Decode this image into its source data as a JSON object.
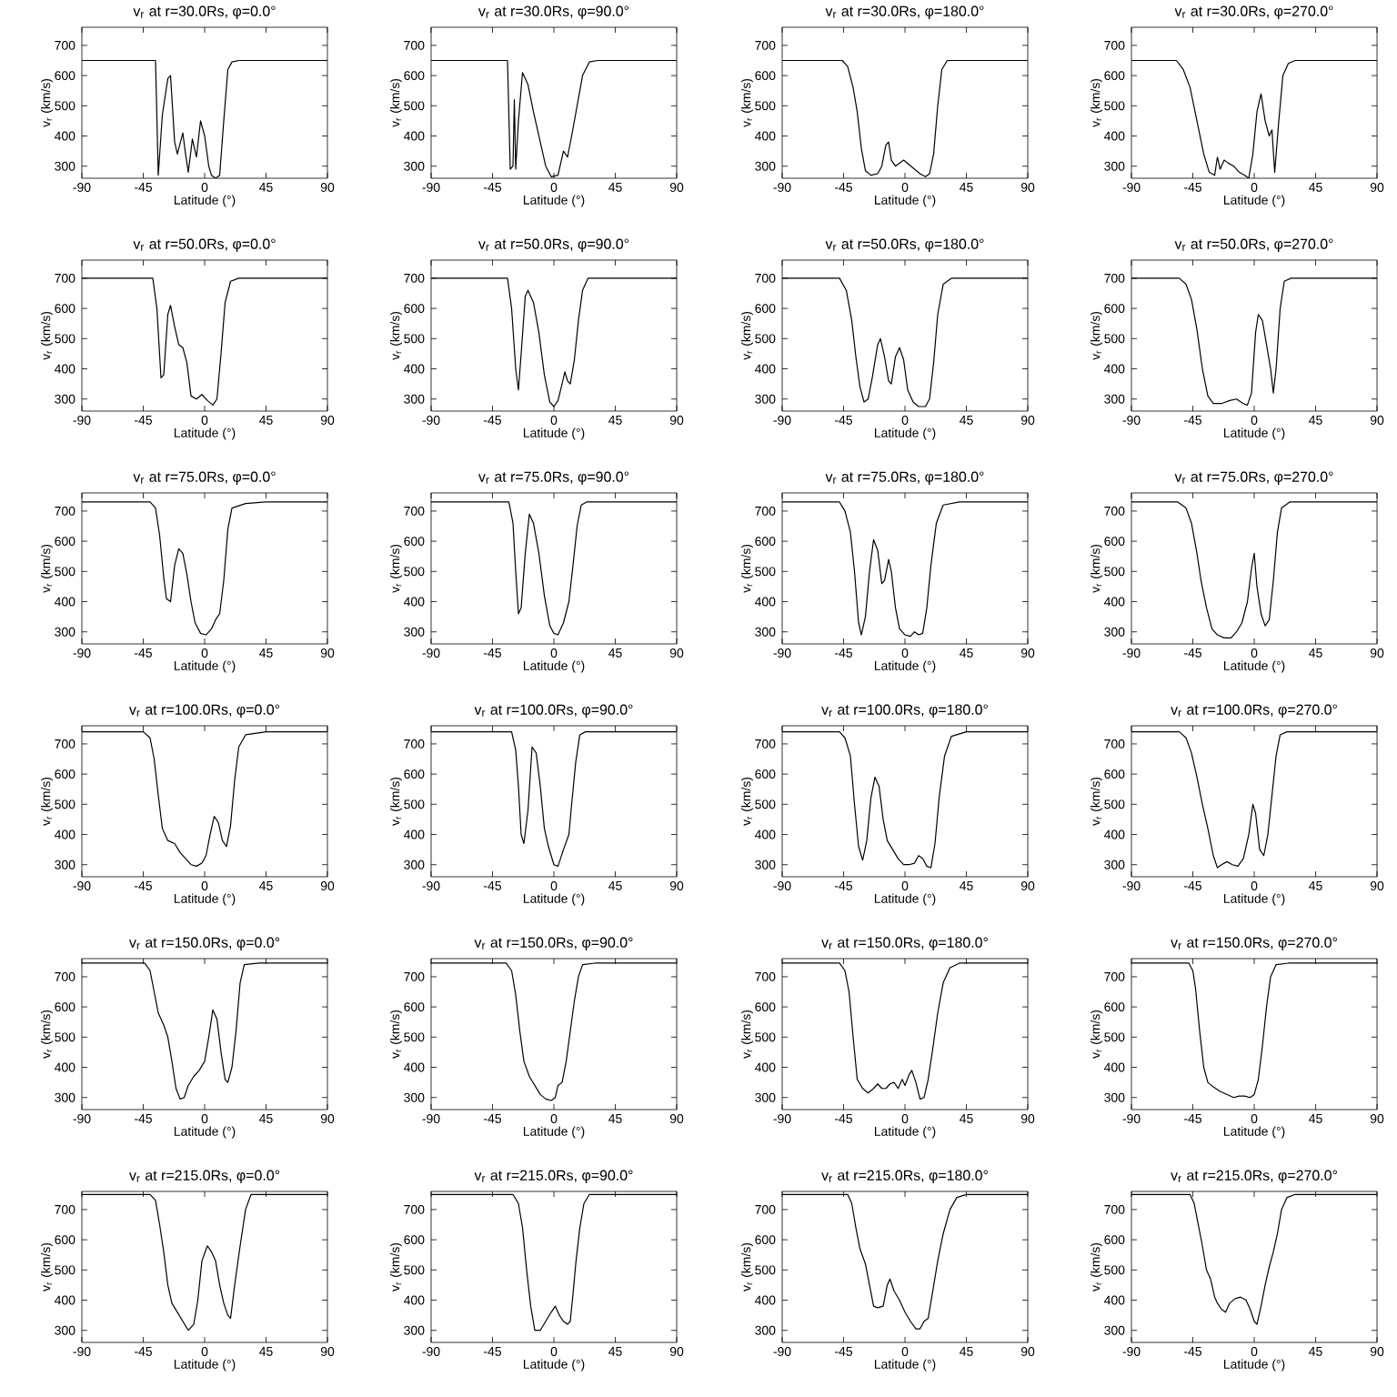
{
  "chart_data": [
    {
      "type": "line",
      "title": "v$_{r}$ at r=30.0Rs, φ=0.0°",
      "xlabel": "Latitude (°)",
      "ylabel": "v$_{r}$ (km/s)",
      "color": "#000000",
      "xlim": [
        -90,
        90
      ],
      "ylim": [
        260,
        760
      ],
      "xticks": [
        -90,
        -45,
        0,
        45,
        90
      ],
      "yticks": [
        300,
        400,
        500,
        600,
        700
      ],
      "x": [
        -90,
        -36,
        -34,
        -31,
        -27,
        -25,
        -22,
        -20,
        -16,
        -14,
        -12,
        -9,
        -6,
        -3,
        0,
        3,
        5,
        8,
        11,
        14,
        17,
        20,
        25,
        90
      ],
      "values": [
        650,
        650,
        270,
        470,
        590,
        600,
        380,
        340,
        410,
        340,
        280,
        390,
        330,
        450,
        400,
        300,
        270,
        260,
        270,
        450,
        620,
        645,
        650,
        650
      ]
    },
    {
      "type": "line",
      "title": "v$_{r}$ at r=30.0Rs, φ=90.0°",
      "xlabel": "Latitude (°)",
      "ylabel": "v$_{r}$ (km/s)",
      "color": "#000000",
      "xlim": [
        -90,
        90
      ],
      "ylim": [
        260,
        760
      ],
      "xticks": [
        -90,
        -45,
        0,
        45,
        90
      ],
      "yticks": [
        300,
        400,
        500,
        600,
        700
      ],
      "x": [
        -90,
        -34,
        -32,
        -30,
        -29,
        -28,
        -26,
        -23,
        -19,
        -15,
        -10,
        -6,
        -2,
        3,
        7,
        10,
        13,
        17,
        21,
        26,
        32,
        90
      ],
      "values": [
        650,
        650,
        290,
        300,
        520,
        290,
        450,
        610,
        570,
        480,
        380,
        300,
        265,
        270,
        350,
        330,
        400,
        500,
        600,
        645,
        650,
        650
      ]
    },
    {
      "type": "line",
      "title": "v$_{r}$ at r=30.0Rs, φ=180.0°",
      "xlabel": "Latitude (°)",
      "ylabel": "v$_{r}$ (km/s)",
      "color": "#000000",
      "xlim": [
        -90,
        90
      ],
      "ylim": [
        260,
        760
      ],
      "xticks": [
        -90,
        -45,
        0,
        45,
        90
      ],
      "yticks": [
        300,
        400,
        500,
        600,
        700
      ],
      "x": [
        -90,
        -46,
        -42,
        -38,
        -35,
        -32,
        -29,
        -25,
        -20,
        -17,
        -14,
        -12,
        -10,
        -7,
        -4,
        -1,
        3,
        7,
        11,
        15,
        18,
        21,
        24,
        27,
        31,
        90
      ],
      "values": [
        650,
        650,
        630,
        560,
        480,
        360,
        285,
        270,
        275,
        300,
        370,
        380,
        320,
        300,
        310,
        320,
        305,
        290,
        275,
        265,
        275,
        340,
        500,
        620,
        650,
        650
      ]
    },
    {
      "type": "line",
      "title": "v$_{r}$ at r=30.0Rs, φ=270.0°",
      "xlabel": "Latitude (°)",
      "ylabel": "v$_{r}$ (km/s)",
      "color": "#000000",
      "xlim": [
        -90,
        90
      ],
      "ylim": [
        260,
        760
      ],
      "xticks": [
        -90,
        -45,
        0,
        45,
        90
      ],
      "yticks": [
        300,
        400,
        500,
        600,
        700
      ],
      "x": [
        -90,
        -57,
        -52,
        -47,
        -42,
        -37,
        -33,
        -29,
        -27,
        -25,
        -22,
        -19,
        -15,
        -11,
        -7,
        -4,
        -1,
        2,
        5,
        8,
        11,
        13,
        15,
        18,
        21,
        25,
        30,
        90
      ],
      "values": [
        650,
        650,
        620,
        560,
        450,
        340,
        280,
        270,
        330,
        290,
        320,
        310,
        300,
        280,
        270,
        260,
        340,
        480,
        540,
        450,
        400,
        420,
        280,
        450,
        600,
        640,
        650,
        650
      ]
    },
    {
      "type": "line",
      "title": "v$_{r}$ at r=50.0Rs, φ=0.0°",
      "xlabel": "Latitude (°)",
      "ylabel": "v$_{r}$ (km/s)",
      "color": "#000000",
      "xlim": [
        -90,
        90
      ],
      "ylim": [
        260,
        760
      ],
      "xticks": [
        -90,
        -45,
        0,
        45,
        90
      ],
      "yticks": [
        300,
        400,
        500,
        600,
        700
      ],
      "x": [
        -90,
        -38,
        -35,
        -32,
        -30,
        -27,
        -25,
        -22,
        -19,
        -16,
        -13,
        -10,
        -6,
        -2,
        2,
        6,
        9,
        12,
        15,
        19,
        25,
        90
      ],
      "values": [
        700,
        700,
        600,
        370,
        380,
        580,
        610,
        540,
        480,
        470,
        420,
        310,
        300,
        315,
        295,
        280,
        300,
        450,
        620,
        690,
        700,
        700
      ]
    },
    {
      "type": "line",
      "title": "v$_{r}$ at r=50.0Rs, φ=90.0°",
      "xlabel": "Latitude (°)",
      "ylabel": "v$_{r}$ (km/s)",
      "color": "#000000",
      "xlim": [
        -90,
        90
      ],
      "ylim": [
        260,
        760
      ],
      "xticks": [
        -90,
        -45,
        0,
        45,
        90
      ],
      "yticks": [
        300,
        400,
        500,
        600,
        700
      ],
      "x": [
        -90,
        -34,
        -31,
        -28,
        -26,
        -24,
        -21,
        -19,
        -15,
        -11,
        -7,
        -3,
        0,
        3,
        6,
        8,
        10,
        12,
        15,
        18,
        21,
        25,
        90
      ],
      "values": [
        700,
        700,
        600,
        400,
        330,
        450,
        640,
        660,
        620,
        520,
        380,
        290,
        275,
        295,
        350,
        390,
        360,
        350,
        430,
        560,
        660,
        700,
        700
      ]
    },
    {
      "type": "line",
      "title": "v$_{r}$ at r=50.0Rs, φ=180.0°",
      "xlabel": "Latitude (°)",
      "ylabel": "v$_{r}$ (km/s)",
      "color": "#000000",
      "xlim": [
        -90,
        90
      ],
      "ylim": [
        260,
        760
      ],
      "xticks": [
        -90,
        -45,
        0,
        45,
        90
      ],
      "yticks": [
        300,
        400,
        500,
        600,
        700
      ],
      "x": [
        -90,
        -48,
        -43,
        -39,
        -36,
        -33,
        -30,
        -27,
        -24,
        -20,
        -18,
        -15,
        -12,
        -10,
        -7,
        -4,
        -1,
        2,
        6,
        10,
        15,
        18,
        21,
        24,
        28,
        34,
        90
      ],
      "values": [
        700,
        700,
        660,
        560,
        440,
        340,
        290,
        300,
        370,
        480,
        500,
        440,
        360,
        350,
        440,
        470,
        430,
        330,
        290,
        275,
        275,
        300,
        420,
        580,
        680,
        700,
        700
      ]
    },
    {
      "type": "line",
      "title": "v$_{r}$ at r=50.0Rs, φ=270.0°",
      "xlabel": "Latitude (°)",
      "ylabel": "v$_{r}$ (km/s)",
      "color": "#000000",
      "xlim": [
        -90,
        90
      ],
      "ylim": [
        260,
        760
      ],
      "xticks": [
        -90,
        -45,
        0,
        45,
        90
      ],
      "yticks": [
        300,
        400,
        500,
        600,
        700
      ],
      "x": [
        -90,
        -55,
        -50,
        -46,
        -42,
        -38,
        -34,
        -30,
        -24,
        -18,
        -13,
        -8,
        -5,
        -2,
        1,
        3,
        6,
        9,
        12,
        14,
        16,
        19,
        22,
        27,
        90
      ],
      "values": [
        700,
        700,
        680,
        630,
        530,
        400,
        310,
        285,
        285,
        295,
        300,
        285,
        280,
        320,
        520,
        580,
        560,
        480,
        400,
        320,
        400,
        600,
        690,
        700,
        700
      ]
    },
    {
      "type": "line",
      "title": "v$_{r}$ at r=75.0Rs, φ=0.0°",
      "xlabel": "Latitude (°)",
      "ylabel": "v$_{r}$ (km/s)",
      "color": "#000000",
      "xlim": [
        -90,
        90
      ],
      "ylim": [
        260,
        760
      ],
      "xticks": [
        -90,
        -45,
        0,
        45,
        90
      ],
      "yticks": [
        300,
        400,
        500,
        600,
        700
      ],
      "x": [
        -90,
        -40,
        -36,
        -33,
        -30,
        -28,
        -25,
        -22,
        -19,
        -16,
        -13,
        -10,
        -7,
        -3,
        1,
        5,
        8,
        11,
        14,
        17,
        20,
        30,
        45,
        90
      ],
      "values": [
        730,
        730,
        710,
        620,
        480,
        410,
        400,
        520,
        575,
        560,
        490,
        400,
        330,
        295,
        290,
        310,
        340,
        360,
        470,
        640,
        710,
        725,
        730,
        730
      ]
    },
    {
      "type": "line",
      "title": "v$_{r}$ at r=75.0Rs, φ=90.0°",
      "xlabel": "Latitude (°)",
      "ylabel": "v$_{r}$ (km/s)",
      "color": "#000000",
      "xlim": [
        -90,
        90
      ],
      "ylim": [
        260,
        760
      ],
      "xticks": [
        -90,
        -45,
        0,
        45,
        90
      ],
      "yticks": [
        300,
        400,
        500,
        600,
        700
      ],
      "x": [
        -90,
        -33,
        -30,
        -28,
        -26,
        -24,
        -21,
        -18,
        -15,
        -11,
        -7,
        -3,
        0,
        3,
        7,
        11,
        14,
        17,
        20,
        24,
        90
      ],
      "values": [
        730,
        730,
        660,
        500,
        360,
        380,
        560,
        690,
        660,
        560,
        420,
        320,
        295,
        290,
        330,
        400,
        520,
        650,
        720,
        730,
        730
      ]
    },
    {
      "type": "line",
      "title": "v$_{r}$ at r=75.0Rs, φ=180.0°",
      "xlabel": "Latitude (°)",
      "ylabel": "v$_{r}$ (km/s)",
      "color": "#000000",
      "xlim": [
        -90,
        90
      ],
      "ylim": [
        260,
        760
      ],
      "xticks": [
        -90,
        -45,
        0,
        45,
        90
      ],
      "yticks": [
        300,
        400,
        500,
        600,
        700
      ],
      "x": [
        -90,
        -48,
        -44,
        -40,
        -37,
        -34,
        -32,
        -29,
        -26,
        -23,
        -20,
        -17,
        -15,
        -12,
        -10,
        -7,
        -4,
        0,
        4,
        7,
        10,
        13,
        16,
        19,
        23,
        28,
        40,
        90
      ],
      "values": [
        730,
        730,
        700,
        630,
        500,
        330,
        290,
        350,
        500,
        605,
        570,
        460,
        470,
        540,
        500,
        380,
        310,
        290,
        285,
        300,
        290,
        295,
        380,
        520,
        660,
        720,
        730,
        730
      ]
    },
    {
      "type": "line",
      "title": "v$_{r}$ at r=75.0Rs, φ=270.0°",
      "xlabel": "Latitude (°)",
      "ylabel": "v$_{r}$ (km/s)",
      "color": "#000000",
      "xlim": [
        -90,
        90
      ],
      "ylim": [
        260,
        760
      ],
      "xticks": [
        -90,
        -45,
        0,
        45,
        90
      ],
      "yticks": [
        300,
        400,
        500,
        600,
        700
      ],
      "x": [
        -90,
        -56,
        -50,
        -46,
        -42,
        -39,
        -35,
        -31,
        -27,
        -22,
        -17,
        -13,
        -9,
        -5,
        -2,
        0,
        2,
        5,
        8,
        11,
        14,
        17,
        20,
        26,
        90
      ],
      "values": [
        730,
        730,
        710,
        660,
        560,
        470,
        380,
        310,
        290,
        280,
        280,
        300,
        330,
        400,
        510,
        560,
        450,
        360,
        320,
        340,
        470,
        630,
        710,
        730,
        730
      ]
    },
    {
      "type": "line",
      "title": "v$_{r}$ at r=100.0Rs, φ=0.0°",
      "xlabel": "Latitude (°)",
      "ylabel": "v$_{r}$ (km/s)",
      "color": "#000000",
      "xlim": [
        -90,
        90
      ],
      "ylim": [
        260,
        760
      ],
      "xticks": [
        -90,
        -45,
        0,
        45,
        90
      ],
      "yticks": [
        300,
        400,
        500,
        600,
        700
      ],
      "x": [
        -90,
        -45,
        -40,
        -37,
        -34,
        -31,
        -27,
        -22,
        -18,
        -14,
        -10,
        -6,
        -2,
        1,
        4,
        7,
        10,
        13,
        16,
        19,
        22,
        25,
        30,
        45,
        90
      ],
      "values": [
        740,
        740,
        720,
        650,
        530,
        420,
        380,
        370,
        340,
        320,
        300,
        295,
        305,
        330,
        400,
        460,
        440,
        380,
        360,
        430,
        580,
        690,
        730,
        740,
        740
      ]
    },
    {
      "type": "line",
      "title": "v$_{r}$ at r=100.0Rs, φ=90.0°",
      "xlabel": "Latitude (°)",
      "ylabel": "v$_{r}$ (km/s)",
      "color": "#000000",
      "xlim": [
        -90,
        90
      ],
      "ylim": [
        260,
        760
      ],
      "xticks": [
        -90,
        -45,
        0,
        45,
        90
      ],
      "yticks": [
        300,
        400,
        500,
        600,
        700
      ],
      "x": [
        -90,
        -31,
        -28,
        -26,
        -24,
        -22,
        -19,
        -16,
        -13,
        -10,
        -7,
        -4,
        0,
        3,
        7,
        11,
        13,
        16,
        19,
        23,
        90
      ],
      "values": [
        740,
        740,
        680,
        560,
        400,
        370,
        480,
        690,
        670,
        560,
        420,
        360,
        300,
        295,
        350,
        400,
        500,
        640,
        730,
        740,
        740
      ]
    },
    {
      "type": "line",
      "title": "v$_{r}$ at r=100.0Rs, φ=180.0°",
      "xlabel": "Latitude (°)",
      "ylabel": "v$_{r}$ (km/s)",
      "color": "#000000",
      "xlim": [
        -90,
        90
      ],
      "ylim": [
        260,
        760
      ],
      "xticks": [
        -90,
        -45,
        0,
        45,
        90
      ],
      "yticks": [
        300,
        400,
        500,
        600,
        700
      ],
      "x": [
        -90,
        -48,
        -44,
        -40,
        -37,
        -34,
        -31,
        -28,
        -25,
        -22,
        -19,
        -16,
        -13,
        -9,
        -5,
        -1,
        3,
        7,
        10,
        13,
        16,
        19,
        22,
        25,
        29,
        34,
        45,
        90
      ],
      "values": [
        740,
        740,
        720,
        660,
        500,
        360,
        315,
        380,
        520,
        590,
        560,
        450,
        380,
        350,
        320,
        300,
        300,
        305,
        330,
        320,
        295,
        290,
        370,
        520,
        660,
        725,
        740,
        740
      ]
    },
    {
      "type": "line",
      "title": "v$_{r}$ at r=100.0Rs, φ=270.0°",
      "xlabel": "Latitude (°)",
      "ylabel": "v$_{r}$ (km/s)",
      "color": "#000000",
      "xlim": [
        -90,
        90
      ],
      "ylim": [
        260,
        760
      ],
      "xticks": [
        -90,
        -45,
        0,
        45,
        90
      ],
      "yticks": [
        300,
        400,
        500,
        600,
        700
      ],
      "x": [
        -90,
        -55,
        -50,
        -46,
        -42,
        -38,
        -34,
        -30,
        -27,
        -24,
        -20,
        -16,
        -12,
        -8,
        -4,
        -1,
        1,
        4,
        7,
        10,
        13,
        16,
        19,
        24,
        90
      ],
      "values": [
        740,
        740,
        720,
        670,
        590,
        500,
        420,
        330,
        290,
        300,
        310,
        300,
        295,
        320,
        400,
        500,
        470,
        350,
        330,
        400,
        530,
        660,
        730,
        740,
        740
      ]
    },
    {
      "type": "line",
      "title": "v$_{r}$ at r=150.0Rs, φ=0.0°",
      "xlabel": "Latitude (°)",
      "ylabel": "v$_{r}$ (km/s)",
      "color": "#000000",
      "xlim": [
        -90,
        90
      ],
      "ylim": [
        260,
        760
      ],
      "xticks": [
        -90,
        -45,
        0,
        45,
        90
      ],
      "yticks": [
        300,
        400,
        500,
        600,
        700
      ],
      "x": [
        -90,
        -44,
        -40,
        -37,
        -34,
        -30,
        -27,
        -24,
        -21,
        -18,
        -15,
        -12,
        -8,
        -4,
        0,
        3,
        6,
        9,
        12,
        15,
        17,
        20,
        23,
        26,
        29,
        40,
        90
      ],
      "values": [
        745,
        745,
        720,
        650,
        580,
        540,
        500,
        420,
        330,
        295,
        300,
        340,
        370,
        390,
        420,
        500,
        590,
        560,
        450,
        360,
        350,
        400,
        520,
        680,
        740,
        745,
        745
      ]
    },
    {
      "type": "line",
      "title": "v$_{r}$ at r=150.0Rs, φ=90.0°",
      "xlabel": "Latitude (°)",
      "ylabel": "v$_{r}$ (km/s)",
      "color": "#000000",
      "xlim": [
        -90,
        90
      ],
      "ylim": [
        260,
        760
      ],
      "xticks": [
        -90,
        -45,
        0,
        45,
        90
      ],
      "yticks": [
        300,
        400,
        500,
        600,
        700
      ],
      "x": [
        -90,
        -35,
        -31,
        -28,
        -25,
        -22,
        -18,
        -14,
        -10,
        -6,
        -2,
        1,
        3,
        6,
        9,
        12,
        15,
        18,
        21,
        30,
        90
      ],
      "values": [
        745,
        745,
        720,
        640,
        520,
        420,
        370,
        340,
        310,
        295,
        290,
        300,
        340,
        350,
        420,
        520,
        620,
        700,
        740,
        745,
        745
      ]
    },
    {
      "type": "line",
      "title": "v$_{r}$ at r=150.0Rs, φ=180.0°",
      "xlabel": "Latitude (°)",
      "ylabel": "v$_{r}$ (km/s)",
      "color": "#000000",
      "xlim": [
        -90,
        90
      ],
      "ylim": [
        260,
        760
      ],
      "xticks": [
        -90,
        -45,
        0,
        45,
        90
      ],
      "yticks": [
        300,
        400,
        500,
        600,
        700
      ],
      "x": [
        -90,
        -48,
        -44,
        -41,
        -38,
        -35,
        -31,
        -27,
        -23,
        -20,
        -17,
        -14,
        -11,
        -8,
        -5,
        -2,
        0,
        3,
        5,
        8,
        11,
        14,
        17,
        20,
        24,
        28,
        33,
        40,
        90
      ],
      "values": [
        745,
        745,
        720,
        650,
        500,
        360,
        330,
        315,
        330,
        345,
        330,
        330,
        345,
        350,
        330,
        360,
        340,
        375,
        390,
        350,
        295,
        300,
        360,
        450,
        580,
        680,
        730,
        745,
        745
      ]
    },
    {
      "type": "line",
      "title": "v$_{r}$ at r=150.0Rs, φ=270.0°",
      "xlabel": "Latitude (°)",
      "ylabel": "v$_{r}$ (km/s)",
      "color": "#000000",
      "xlim": [
        -90,
        90
      ],
      "ylim": [
        260,
        760
      ],
      "xticks": [
        -90,
        -45,
        0,
        45,
        90
      ],
      "yticks": [
        300,
        400,
        500,
        600,
        700
      ],
      "x": [
        -90,
        -48,
        -45,
        -43,
        -40,
        -37,
        -34,
        -30,
        -25,
        -20,
        -15,
        -11,
        -7,
        -3,
        0,
        3,
        6,
        9,
        12,
        16,
        25,
        90
      ],
      "values": [
        745,
        745,
        720,
        660,
        520,
        400,
        350,
        335,
        320,
        310,
        300,
        305,
        305,
        300,
        310,
        360,
        470,
        600,
        700,
        740,
        745,
        745
      ]
    },
    {
      "type": "line",
      "title": "v$_{r}$ at r=215.0Rs, φ=0.0°",
      "xlabel": "Latitude (°)",
      "ylabel": "v$_{r}$ (km/s)",
      "color": "#000000",
      "xlim": [
        -90,
        90
      ],
      "ylim": [
        260,
        760
      ],
      "xticks": [
        -90,
        -45,
        0,
        45,
        90
      ],
      "yticks": [
        300,
        400,
        500,
        600,
        700
      ],
      "x": [
        -90,
        -40,
        -36,
        -33,
        -30,
        -27,
        -24,
        -20,
        -16,
        -12,
        -8,
        -5,
        -2,
        2,
        5,
        8,
        11,
        14,
        17,
        19,
        22,
        26,
        30,
        34,
        90
      ],
      "values": [
        750,
        750,
        730,
        650,
        560,
        450,
        390,
        360,
        330,
        300,
        320,
        400,
        530,
        580,
        560,
        530,
        450,
        390,
        350,
        340,
        450,
        580,
        700,
        750,
        750
      ]
    },
    {
      "type": "line",
      "title": "v$_{r}$ at r=215.0Rs, φ=90.0°",
      "xlabel": "Latitude (°)",
      "ylabel": "v$_{r}$ (km/s)",
      "color": "#000000",
      "xlim": [
        -90,
        90
      ],
      "ylim": [
        260,
        760
      ],
      "xticks": [
        -90,
        -45,
        0,
        45,
        90
      ],
      "yticks": [
        300,
        400,
        500,
        600,
        700
      ],
      "x": [
        -90,
        -30,
        -26,
        -23,
        -20,
        -17,
        -14,
        -10,
        -6,
        -2,
        1,
        4,
        7,
        10,
        12,
        14,
        16,
        19,
        22,
        26,
        90
      ],
      "values": [
        750,
        750,
        720,
        640,
        500,
        380,
        300,
        300,
        330,
        360,
        380,
        350,
        330,
        320,
        330,
        420,
        520,
        640,
        720,
        750,
        750
      ]
    },
    {
      "type": "line",
      "title": "v$_{r}$ at r=215.0Rs, φ=180.0°",
      "xlabel": "Latitude (°)",
      "ylabel": "v$_{r}$ (km/s)",
      "color": "#000000",
      "xlim": [
        -90,
        90
      ],
      "ylim": [
        260,
        760
      ],
      "xticks": [
        -90,
        -45,
        0,
        45,
        90
      ],
      "yticks": [
        300,
        400,
        500,
        600,
        700
      ],
      "x": [
        -90,
        -42,
        -39,
        -36,
        -33,
        -29,
        -26,
        -23,
        -20,
        -16,
        -13,
        -11,
        -8,
        -4,
        0,
        4,
        8,
        11,
        14,
        17,
        20,
        24,
        28,
        33,
        38,
        45,
        90
      ],
      "values": [
        750,
        750,
        720,
        640,
        570,
        520,
        450,
        380,
        375,
        380,
        450,
        470,
        430,
        400,
        360,
        330,
        305,
        305,
        330,
        340,
        420,
        530,
        620,
        700,
        740,
        750,
        750
      ]
    },
    {
      "type": "line",
      "title": "v$_{r}$ at r=215.0Rs, φ=270.0°",
      "xlabel": "Latitude (°)",
      "ylabel": "v$_{r}$ (km/s)",
      "color": "#000000",
      "xlim": [
        -90,
        90
      ],
      "ylim": [
        260,
        760
      ],
      "xticks": [
        -90,
        -45,
        0,
        45,
        90
      ],
      "yticks": [
        300,
        400,
        500,
        600,
        700
      ],
      "x": [
        -90,
        -47,
        -44,
        -41,
        -38,
        -35,
        -32,
        -29,
        -27,
        -24,
        -21,
        -18,
        -14,
        -10,
        -6,
        -3,
        0,
        2,
        5,
        8,
        11,
        14,
        17,
        20,
        24,
        30,
        90
      ],
      "values": [
        750,
        750,
        720,
        650,
        580,
        500,
        470,
        410,
        390,
        370,
        360,
        390,
        405,
        410,
        400,
        370,
        330,
        320,
        380,
        450,
        510,
        560,
        620,
        700,
        740,
        750,
        750
      ]
    }
  ]
}
